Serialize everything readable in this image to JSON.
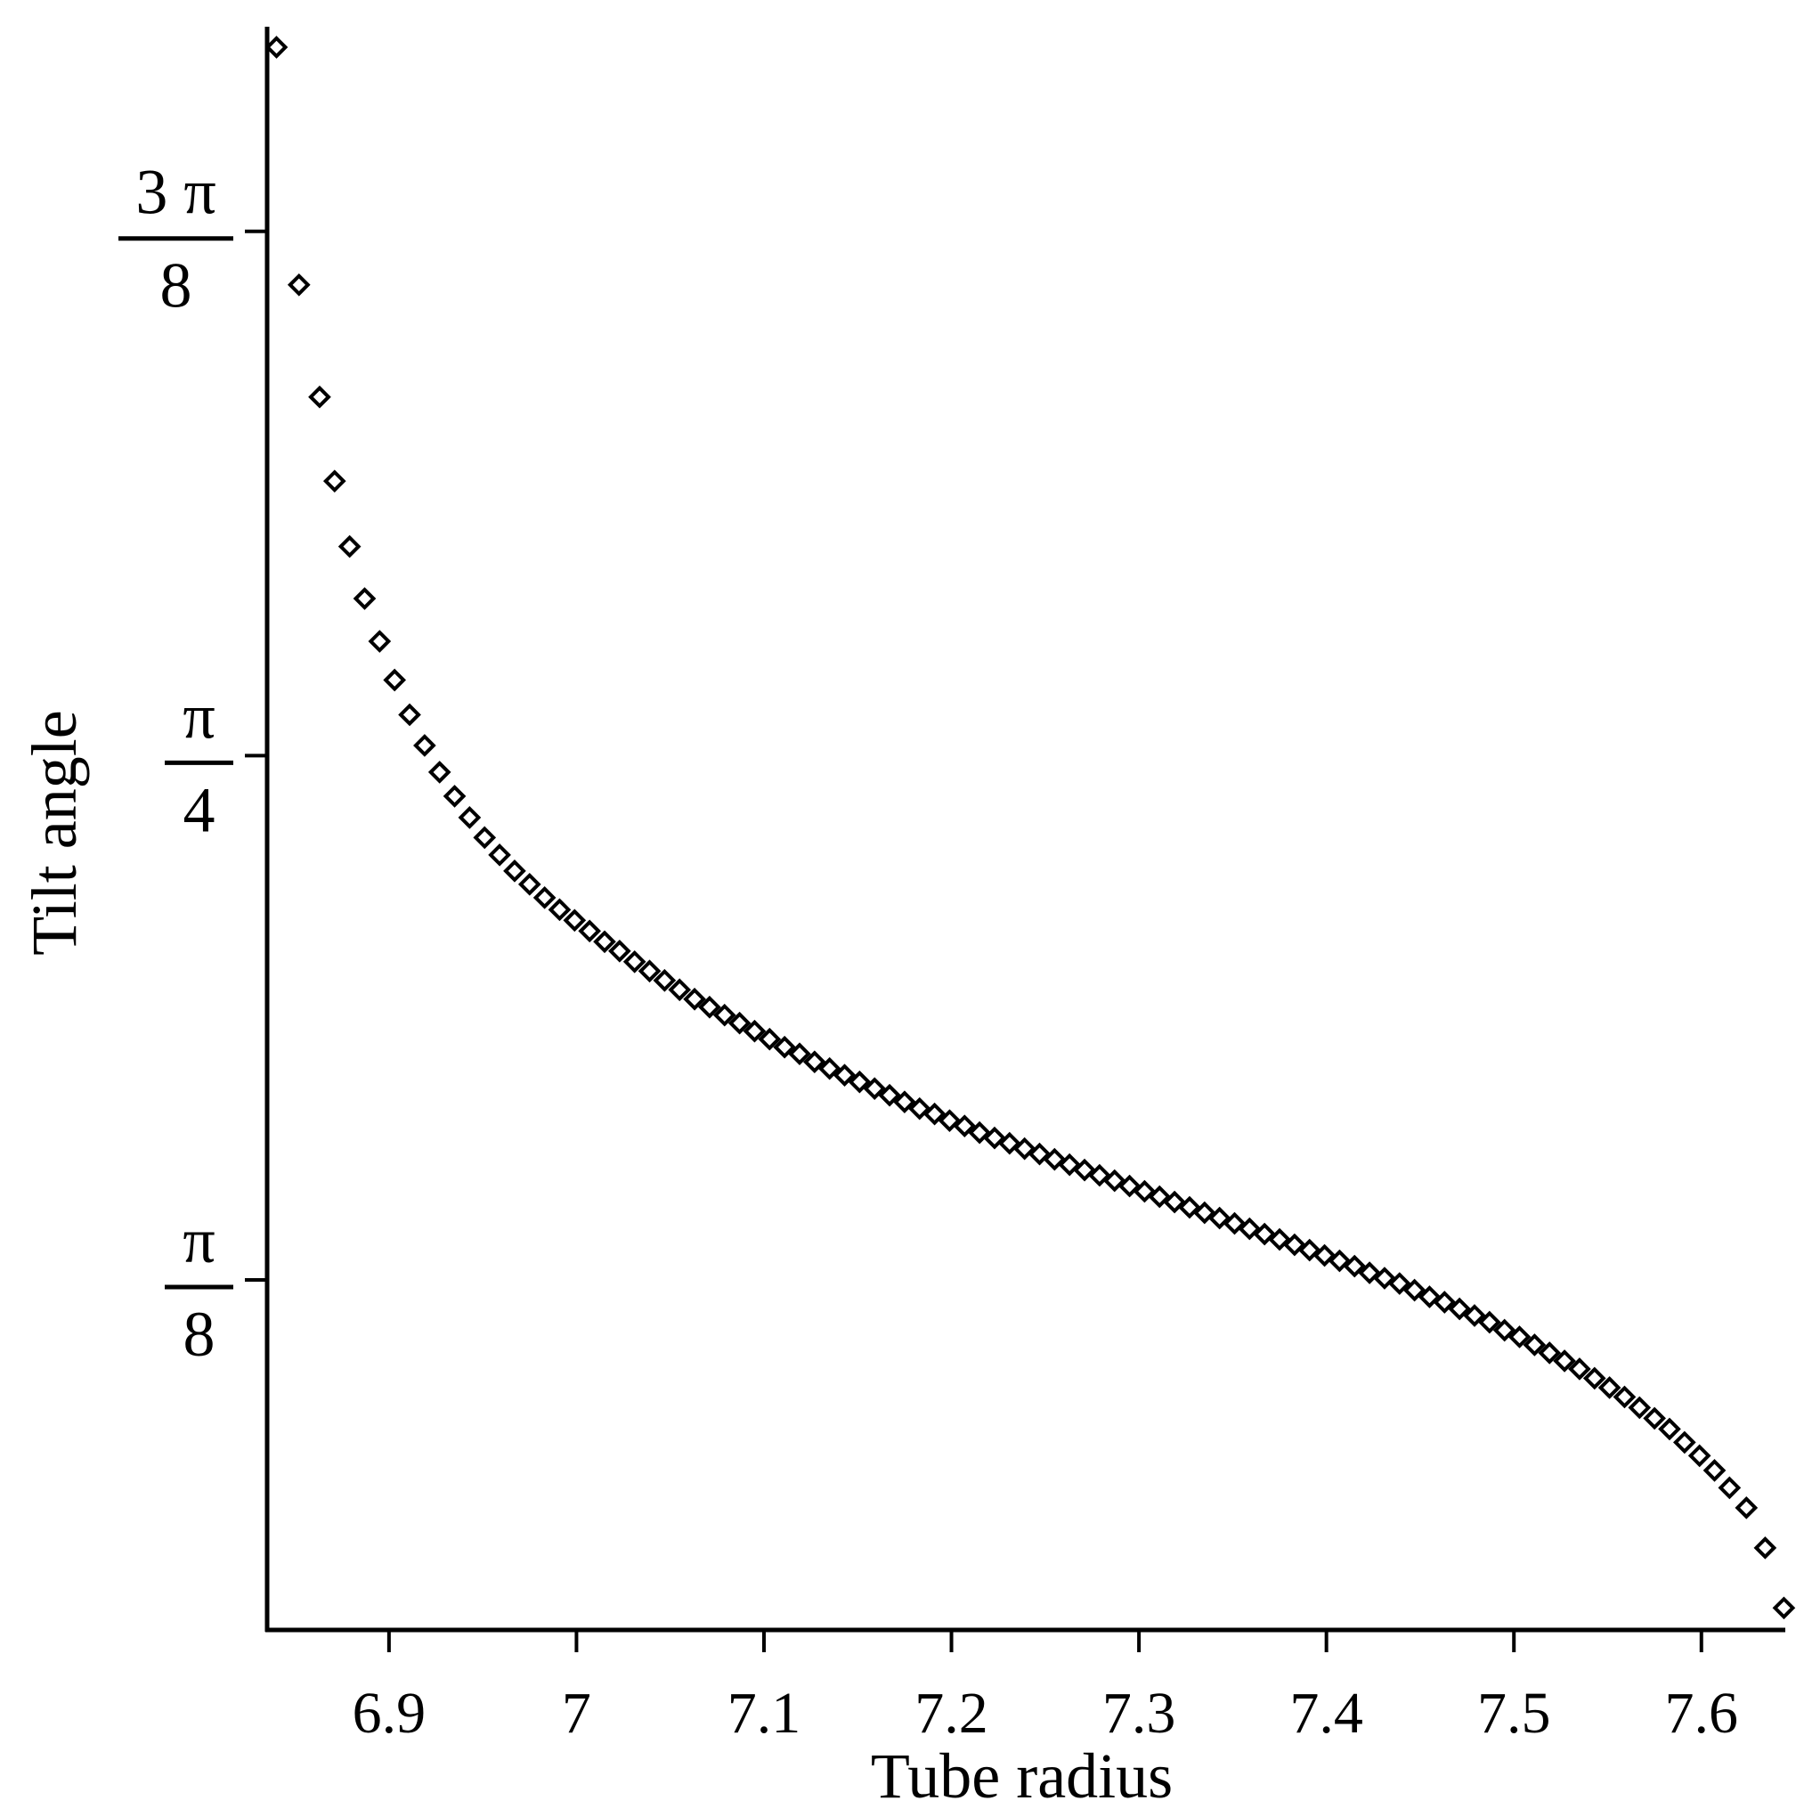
{
  "chart_data": {
    "type": "scatter",
    "xlabel": "Tube radius",
    "ylabel": "Tilt angle",
    "xlim": [
      6.835,
      7.64
    ],
    "ylim": [
      0.1305,
      1.328
    ],
    "x_ticks": [
      {
        "value": 6.9,
        "label": "6.9"
      },
      {
        "value": 7.0,
        "label": "7"
      },
      {
        "value": 7.1,
        "label": "7.1"
      },
      {
        "value": 7.2,
        "label": "7.2"
      },
      {
        "value": 7.3,
        "label": "7.3"
      },
      {
        "value": 7.4,
        "label": "7.4"
      },
      {
        "value": 7.5,
        "label": "7.5"
      },
      {
        "value": 7.6,
        "label": "7.6"
      }
    ],
    "y_ticks": [
      {
        "value": 0.3927,
        "numerator": "π",
        "denominator": "8"
      },
      {
        "value": 0.7854,
        "numerator": "π",
        "denominator": "4"
      },
      {
        "value": 1.1781,
        "numerator": "3 π",
        "denominator": "8"
      }
    ],
    "marker": "diamond-open",
    "grid": false,
    "legend": "none",
    "series": [
      {
        "x": [
          6.84,
          6.852,
          6.863,
          6.871,
          6.879,
          6.887,
          6.895,
          6.903,
          6.911,
          6.919,
          6.927,
          6.935,
          6.943,
          6.951,
          6.959,
          6.967,
          6.975,
          6.983,
          6.991,
          6.999,
          7.007,
          7.015,
          7.023,
          7.031,
          7.039,
          7.047,
          7.055,
          7.063,
          7.071,
          7.079,
          7.087,
          7.095,
          7.103,
          7.111,
          7.119,
          7.127,
          7.135,
          7.143,
          7.151,
          7.159,
          7.167,
          7.175,
          7.183,
          7.191,
          7.199,
          7.207,
          7.215,
          7.223,
          7.231,
          7.239,
          7.247,
          7.255,
          7.263,
          7.271,
          7.279,
          7.287,
          7.295,
          7.303,
          7.311,
          7.319,
          7.327,
          7.335,
          7.343,
          7.351,
          7.359,
          7.367,
          7.375,
          7.383,
          7.391,
          7.399,
          7.407,
          7.415,
          7.423,
          7.431,
          7.439,
          7.447,
          7.455,
          7.463,
          7.471,
          7.479,
          7.487,
          7.495,
          7.503,
          7.511,
          7.519,
          7.527,
          7.535,
          7.543,
          7.551,
          7.559,
          7.567,
          7.575,
          7.583,
          7.591,
          7.599,
          7.607,
          7.615,
          7.624,
          7.634,
          7.644
        ],
        "y": [
          1.316,
          1.138,
          1.054,
          0.991,
          0.942,
          0.903,
          0.871,
          0.842,
          0.816,
          0.793,
          0.773,
          0.755,
          0.739,
          0.724,
          0.711,
          0.699,
          0.689,
          0.679,
          0.67,
          0.662,
          0.654,
          0.646,
          0.639,
          0.631,
          0.624,
          0.617,
          0.61,
          0.603,
          0.597,
          0.591,
          0.585,
          0.579,
          0.573,
          0.567,
          0.562,
          0.556,
          0.551,
          0.546,
          0.541,
          0.536,
          0.531,
          0.526,
          0.521,
          0.517,
          0.512,
          0.508,
          0.503,
          0.499,
          0.495,
          0.491,
          0.487,
          0.483,
          0.479,
          0.475,
          0.471,
          0.467,
          0.463,
          0.459,
          0.455,
          0.451,
          0.447,
          0.443,
          0.439,
          0.435,
          0.431,
          0.427,
          0.423,
          0.419,
          0.415,
          0.411,
          0.407,
          0.403,
          0.398,
          0.394,
          0.39,
          0.385,
          0.38,
          0.376,
          0.371,
          0.366,
          0.361,
          0.355,
          0.35,
          0.344,
          0.338,
          0.332,
          0.326,
          0.319,
          0.312,
          0.305,
          0.297,
          0.289,
          0.281,
          0.271,
          0.261,
          0.25,
          0.237,
          0.222,
          0.192,
          0.147
        ]
      }
    ]
  }
}
